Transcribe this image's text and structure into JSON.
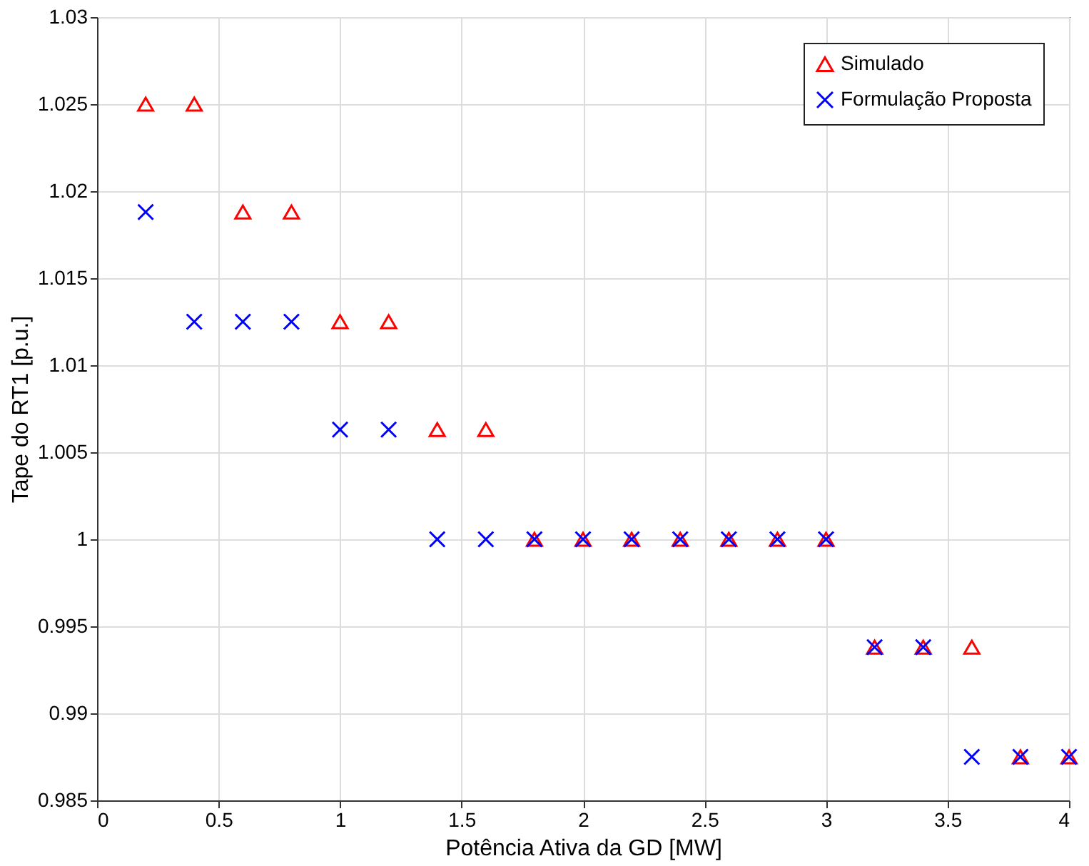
{
  "chart_data": {
    "type": "scatter",
    "xlabel": "Potência Ativa da GD [MW]",
    "ylabel": "Tape do RT1 [p.u.]",
    "xlim": [
      0,
      4
    ],
    "xticks": [
      0,
      0.5,
      1,
      1.5,
      2,
      2.5,
      3,
      3.5,
      4
    ],
    "ylim": [
      0.985,
      1.03
    ],
    "yticks": [
      0.985,
      0.99,
      0.995,
      1,
      1.005,
      1.01,
      1.015,
      1.02,
      1.025,
      1.03
    ],
    "grid": true,
    "legend": "top right",
    "series": [
      {
        "name": "Simulado",
        "color": "#ff0000",
        "marker": "triangle",
        "x": [
          0.2,
          0.4,
          0.6,
          0.8,
          1.0,
          1.2,
          1.4,
          1.6,
          1.8,
          2.0,
          2.2,
          2.4,
          2.6,
          2.8,
          3.0,
          3.2,
          3.4,
          3.6,
          3.8,
          4.0
        ],
        "values": [
          1.025,
          1.025,
          1.0188,
          1.0188,
          1.0125,
          1.0125,
          1.0063,
          1.0063,
          1,
          1,
          1,
          1,
          1,
          1,
          1,
          0.9938,
          0.9938,
          0.9938,
          0.9875,
          0.9875
        ]
      },
      {
        "name": "Formulação Proposta",
        "color": "#0000ff",
        "marker": "cross",
        "x": [
          0.2,
          0.4,
          0.6,
          0.8,
          1.0,
          1.2,
          1.4,
          1.6,
          1.8,
          2.0,
          2.2,
          2.4,
          2.6,
          2.8,
          3.0,
          3.2,
          3.4,
          3.6,
          3.8,
          4.0
        ],
        "values": [
          1.0188,
          1.0125,
          1.0125,
          1.0125,
          1.0063,
          1.0063,
          1,
          1,
          1,
          1,
          1,
          1,
          1,
          1,
          1,
          0.9938,
          0.9938,
          0.9875,
          0.9875,
          0.9875
        ]
      }
    ]
  }
}
